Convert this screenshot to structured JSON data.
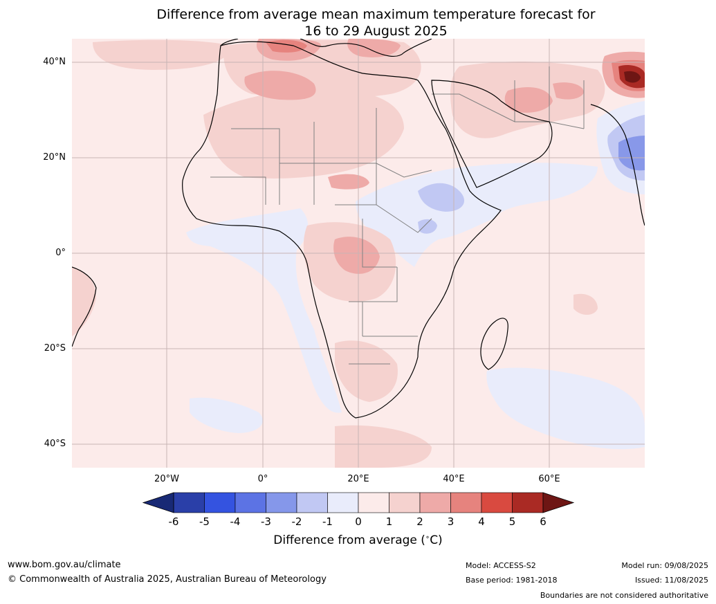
{
  "title_line1": "Difference from average mean maximum temperature forecast for",
  "title_line2": "16 to 29 August 2025",
  "map": {
    "lat_labels": [
      "40°N",
      "20°N",
      "0°",
      "20°S",
      "40°S"
    ],
    "lon_labels": [
      "20°W",
      "0°",
      "20°E",
      "40°E",
      "60°E"
    ],
    "colors": {
      "ocean_default": "#fcebea",
      "light_red": "#f5d2cf",
      "mid_red": "#eeaaa8",
      "red": "#e6837e",
      "dark_red": "#aa2a24",
      "darkest_red": "#6e1614",
      "light_blue": "#e9ecfb",
      "mid_blue": "#c1c8f3",
      "blue": "#8898e9",
      "coast": "#000000",
      "border": "#808080",
      "grid": "#c8b4b4"
    }
  },
  "colorbar": {
    "ticks": [
      "-6",
      "-5",
      "-4",
      "-3",
      "-2",
      "-1",
      "0",
      "1",
      "2",
      "3",
      "4",
      "5",
      "6"
    ],
    "colors": [
      "#2a3fa8",
      "#3453e0",
      "#5c73e4",
      "#8597ea",
      "#c1c8f3",
      "#e9ecfb",
      "#fcebea",
      "#f5d2cf",
      "#eeaaa8",
      "#e6837e",
      "#d94a40",
      "#aa2a24"
    ],
    "under_color": "#182975",
    "over_color": "#6e1614",
    "label": "Difference from average ($^\\circ$C)"
  },
  "footer": {
    "website": "www.bom.gov.au/climate",
    "copyright": "© Commonwealth of Australia 2025, Australian Bureau of Meteorology",
    "model": "Model: ACCESS-S2",
    "base_period": "Base period: 1981-2018",
    "model_run": "Model run: 09/08/2025",
    "issued": "Issued: 11/08/2025",
    "disclaimer": "Boundaries are not considered authoritative"
  }
}
